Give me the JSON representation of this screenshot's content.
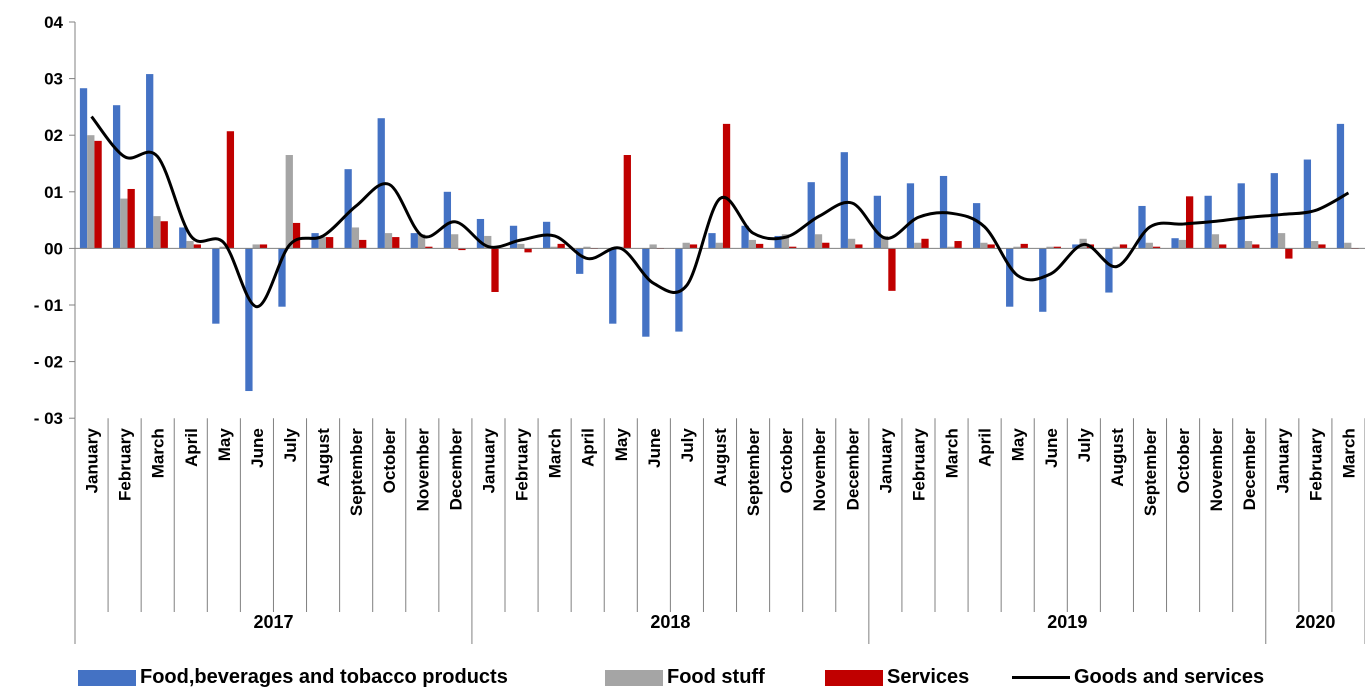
{
  "chart_data": {
    "type": "bar",
    "title": "",
    "xlabel": "",
    "ylabel": "",
    "ylim": [
      -3,
      4
    ],
    "yticks": [
      -3,
      -2,
      -1,
      0,
      1,
      2,
      3,
      4
    ],
    "ytick_labels": [
      "- 03",
      "- 02",
      "- 01",
      "00",
      "01",
      "02",
      "03",
      "04"
    ],
    "categories": [
      "January",
      "February",
      "March",
      "April",
      "May",
      "June",
      "July",
      "August",
      "September",
      "October",
      "November",
      "December",
      "January",
      "February",
      "March",
      "April",
      "May",
      "June",
      "July",
      "August",
      "September",
      "October",
      "November",
      "December",
      "January",
      "February",
      "March",
      "April",
      "May",
      "June",
      "July",
      "August",
      "September",
      "October",
      "November",
      "December",
      "January",
      "February",
      "March"
    ],
    "groups": [
      {
        "label": "2017",
        "count": 12
      },
      {
        "label": "2018",
        "count": 12
      },
      {
        "label": "2019",
        "count": 12
      },
      {
        "label": "2020",
        "count": 3
      }
    ],
    "series": [
      {
        "name": "Food,beverages and tobacco products",
        "type": "bar",
        "color": "#4472C4",
        "values": [
          2.83,
          2.53,
          3.08,
          0.37,
          -1.33,
          -2.52,
          -1.03,
          0.27,
          1.4,
          2.3,
          0.27,
          1.0,
          0.52,
          0.4,
          0.47,
          -0.45,
          -1.33,
          -1.56,
          -1.47,
          0.27,
          0.4,
          0.22,
          1.17,
          1.7,
          0.93,
          1.15,
          1.28,
          0.8,
          -1.03,
          -1.12,
          0.07,
          -0.78,
          0.75,
          0.18,
          0.93,
          1.15,
          1.33,
          1.57,
          2.2
        ]
      },
      {
        "name": "Food stuff",
        "type": "bar",
        "color": "#A5A5A5",
        "values": [
          2.0,
          0.88,
          0.57,
          0.13,
          0.03,
          0.07,
          1.65,
          0.2,
          0.37,
          0.27,
          0.25,
          0.25,
          0.22,
          0.08,
          0.03,
          0.03,
          0.03,
          0.07,
          0.1,
          0.1,
          0.15,
          0.25,
          0.25,
          0.17,
          0.22,
          0.1,
          0.03,
          0.1,
          0.03,
          0.03,
          0.17,
          0.03,
          0.1,
          0.15,
          0.25,
          0.13,
          0.27,
          0.13,
          0.1
        ]
      },
      {
        "name": "Services",
        "type": "bar",
        "color": "#C00000",
        "values": [
          1.9,
          1.05,
          0.48,
          0.07,
          2.07,
          0.07,
          0.45,
          0.2,
          0.15,
          0.2,
          0.03,
          -0.03,
          -0.77,
          -0.07,
          0.08,
          0.0,
          1.65,
          0.0,
          0.07,
          2.2,
          0.08,
          0.03,
          0.1,
          0.07,
          -0.75,
          0.17,
          0.13,
          0.07,
          0.08,
          0.03,
          0.07,
          0.07,
          0.03,
          0.92,
          0.07,
          0.07,
          -0.18,
          0.07,
          0.0
        ]
      },
      {
        "name": "Goods and services",
        "type": "line",
        "color": "#000000",
        "values": [
          2.33,
          1.62,
          1.62,
          0.22,
          0.1,
          -1.03,
          0.07,
          0.22,
          0.75,
          1.13,
          0.22,
          0.47,
          0.03,
          0.15,
          0.22,
          -0.18,
          0.0,
          -0.62,
          -0.65,
          0.88,
          0.27,
          0.2,
          0.57,
          0.8,
          0.18,
          0.55,
          0.62,
          0.38,
          -0.48,
          -0.45,
          0.07,
          -0.32,
          0.38,
          0.43,
          0.48,
          0.55,
          0.6,
          0.67,
          0.98
        ]
      }
    ],
    "legend": "bottom",
    "grid": false
  },
  "legend_items": [
    {
      "label": "Food,beverages and tobacco products",
      "color": "#4472C4",
      "kind": "bar"
    },
    {
      "label": "Food stuff",
      "color": "#A5A5A5",
      "kind": "bar"
    },
    {
      "label": "Services",
      "color": "#C00000",
      "kind": "bar"
    },
    {
      "label": "Goods and services",
      "color": "#000000",
      "kind": "line"
    }
  ]
}
